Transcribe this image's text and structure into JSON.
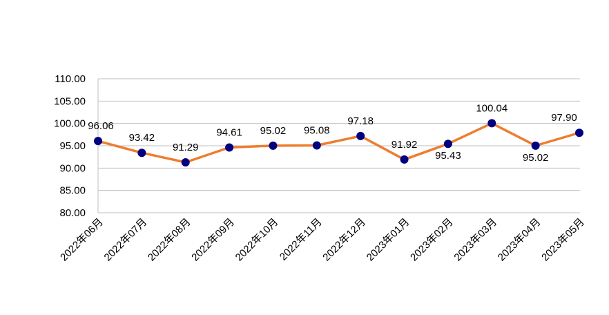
{
  "chart_data": {
    "type": "line",
    "categories": [
      "2022年06月",
      "2022年07月",
      "2022年08月",
      "2022年09月",
      "2022年10月",
      "2022年11月",
      "2022年12月",
      "2023年01月",
      "2023年02月",
      "2023年03月",
      "2023年04月",
      "2023年05月"
    ],
    "values": [
      96.06,
      93.42,
      91.29,
      94.61,
      95.02,
      95.08,
      97.18,
      91.92,
      95.43,
      100.04,
      95.02,
      97.9
    ],
    "value_labels": [
      "96.06",
      "93.42",
      "91.29",
      "94.61",
      "95.02",
      "95.08",
      "97.18",
      "91.92",
      "95.43",
      "100.04",
      "95.02",
      "97.90"
    ],
    "label_positions": [
      "above",
      "above",
      "above",
      "above",
      "above",
      "above",
      "above",
      "above",
      "below",
      "above",
      "below",
      "above"
    ],
    "ylim": [
      80,
      110
    ],
    "yticks": [
      "80.00",
      "85.00",
      "90.00",
      "95.00",
      "100.00",
      "105.00",
      "110.00"
    ],
    "grid": true,
    "line_color": "#ED7D31",
    "marker_color": "#000080",
    "grid_color": "#BFBFBF"
  }
}
